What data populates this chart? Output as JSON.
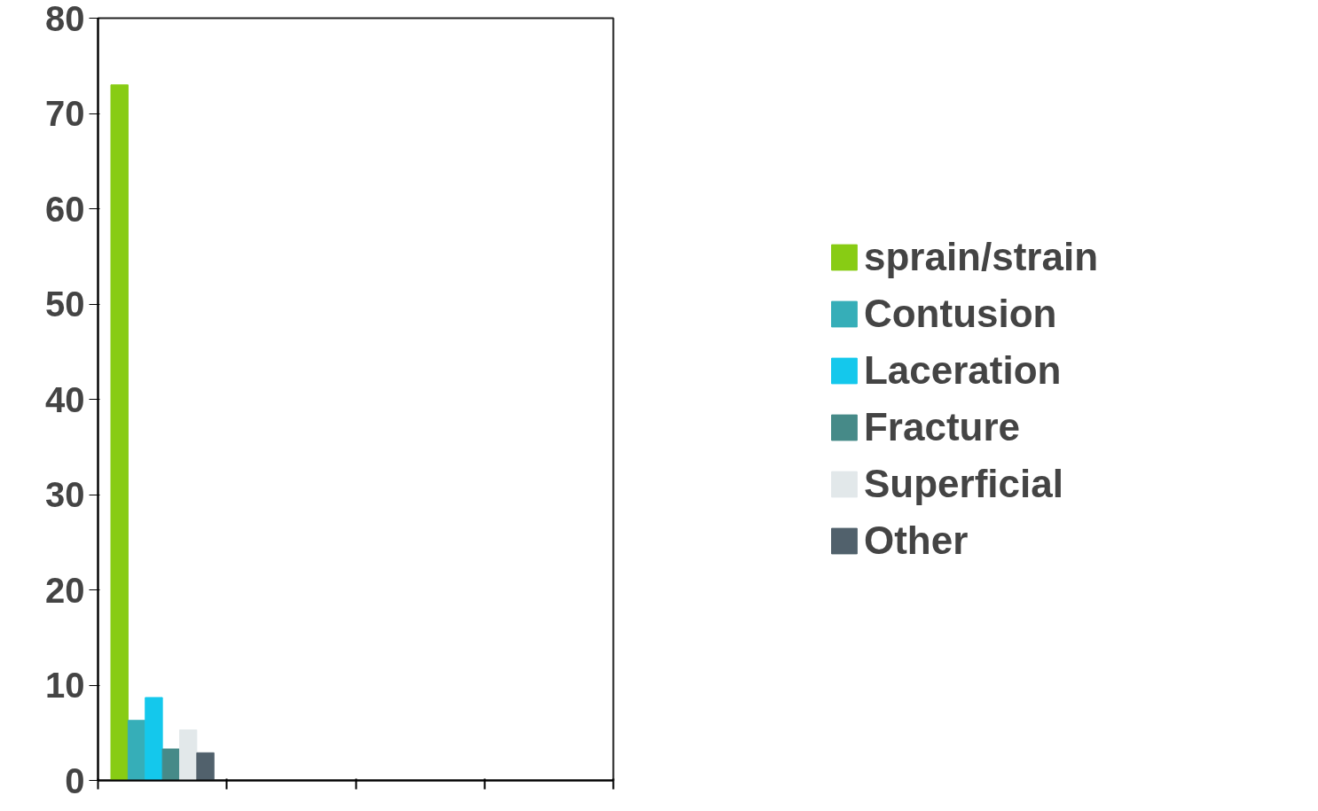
{
  "chart_data": {
    "type": "bar",
    "categories": [
      null,
      null,
      null,
      null
    ],
    "series": [
      {
        "name": "sprain/strain",
        "color": "#88cc14",
        "values": [
          73,
          null,
          null,
          null
        ]
      },
      {
        "name": "Contusion",
        "color": "#36aeb8",
        "values": [
          6.3,
          null,
          null,
          null
        ]
      },
      {
        "name": "Laceration",
        "color": "#14c8ec",
        "values": [
          8.7,
          null,
          null,
          null
        ]
      },
      {
        "name": "Fracture",
        "color": "#468a88",
        "values": [
          3.3,
          null,
          null,
          null
        ]
      },
      {
        "name": "Superficial",
        "color": "#e2e8ea",
        "values": [
          5.3,
          null,
          null,
          null
        ]
      },
      {
        "name": "Other",
        "color": "#51616c",
        "values": [
          2.9,
          null,
          null,
          null
        ]
      }
    ],
    "ylim": [
      0,
      80
    ],
    "yticks": [
      0,
      10,
      20,
      30,
      40,
      50,
      60,
      70,
      80
    ],
    "grid": false,
    "legend": "right"
  }
}
